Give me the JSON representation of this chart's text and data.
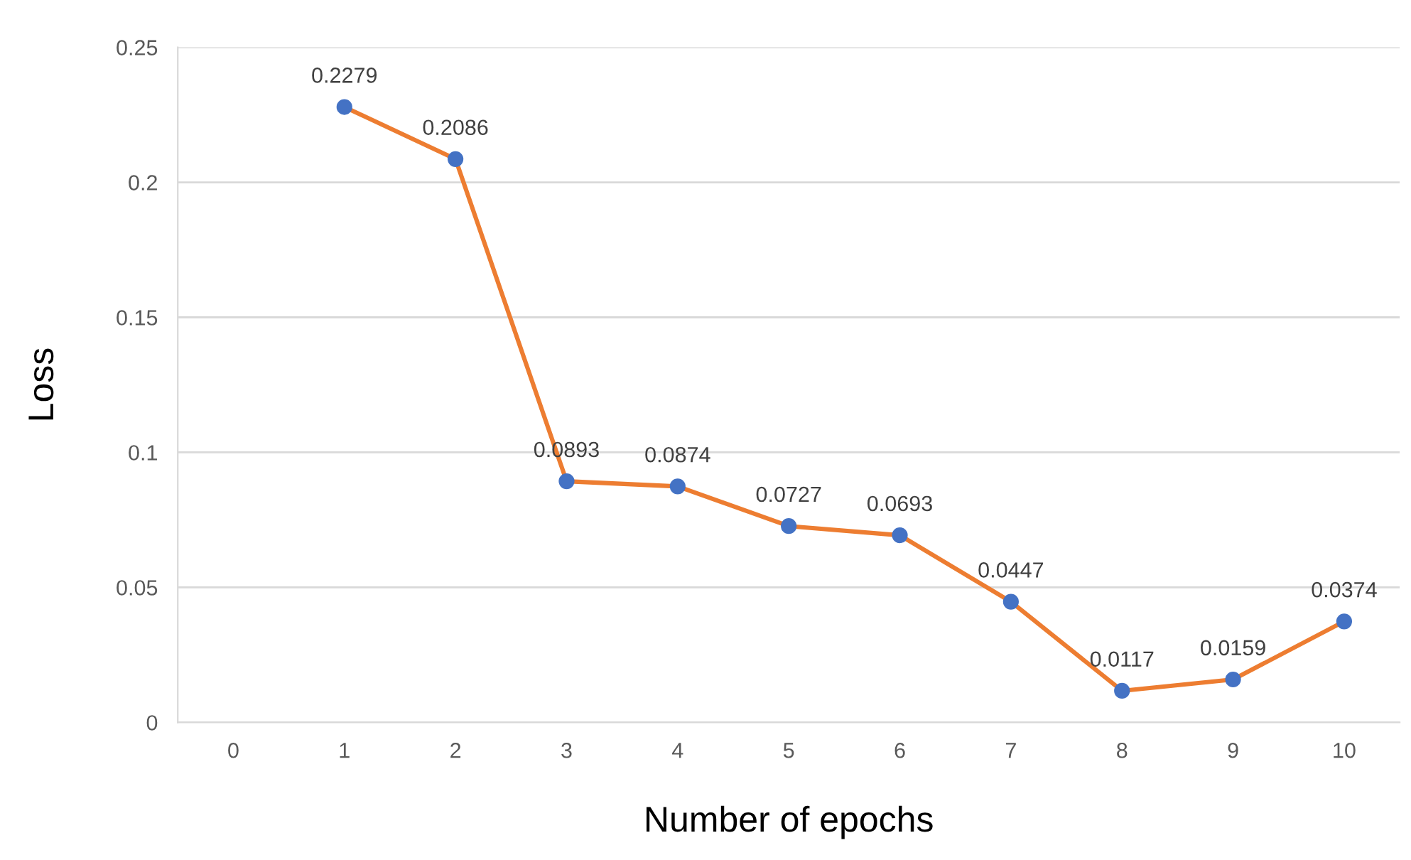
{
  "chart_data": {
    "type": "line",
    "xlabel": "Number of epochs",
    "ylabel": "Loss",
    "categories": [
      "0",
      "1",
      "2",
      "3",
      "4",
      "5",
      "6",
      "7",
      "8",
      "9",
      "10"
    ],
    "series": [
      {
        "color": "#ed7d31",
        "colors": [
          "#4472c4",
          "#4472c4",
          "#4472c4",
          "#4472c4",
          "#4472c4",
          "#4472c4",
          "#4472c4",
          "#4472c4",
          "#4472c4",
          "#4472c4",
          "#4472c4"
        ],
        "values": [
          null,
          0.2279,
          0.2086,
          0.0893,
          0.0874,
          0.0727,
          0.0693,
          0.0447,
          0.0117,
          0.0159,
          0.0374
        ]
      }
    ],
    "ylim": [
      0,
      0.25
    ],
    "yticks": [
      0,
      0.05,
      0.1,
      0.15,
      0.2,
      0.25
    ],
    "grid": "y",
    "marker": "circle",
    "line_style": "solid",
    "data_labels": true,
    "legend": false
  }
}
